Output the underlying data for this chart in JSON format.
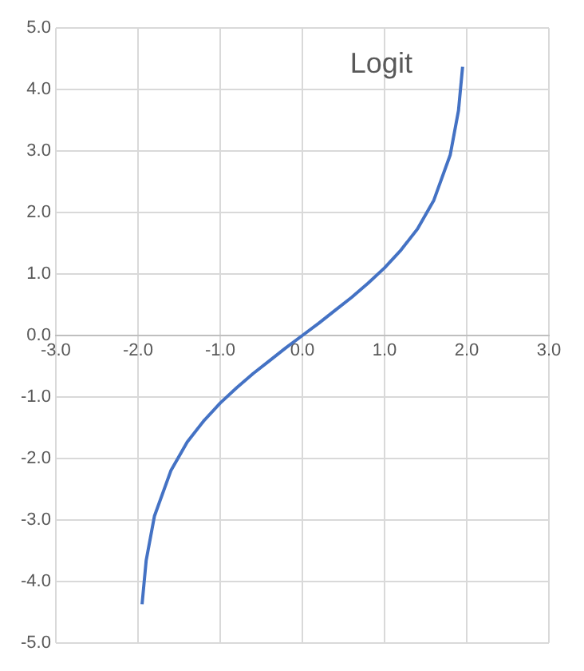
{
  "chart_data": {
    "type": "line",
    "title": "Logit",
    "x": [
      -1.95,
      -1.9,
      -1.8,
      -1.6,
      -1.4,
      -1.2,
      -1.0,
      -0.8,
      -0.6,
      -0.4,
      -0.2,
      0,
      0.2,
      0.4,
      0.6,
      0.8,
      1.0,
      1.2,
      1.4,
      1.6,
      1.8,
      1.9,
      1.95
    ],
    "series": [
      {
        "color": "#4472c4",
        "values": [
          -4.37,
          -3.66,
          -2.94,
          -2.2,
          -1.73,
          -1.39,
          -1.1,
          -0.85,
          -0.62,
          -0.41,
          -0.2,
          0,
          0.2,
          0.41,
          0.62,
          0.85,
          1.1,
          1.39,
          1.73,
          2.2,
          2.94,
          3.66,
          4.37
        ]
      }
    ],
    "xlim": [
      -3,
      3
    ],
    "xticks": [
      {
        "value": -3,
        "label": "-3.0"
      },
      {
        "value": -2,
        "label": "-2.0"
      },
      {
        "value": -1,
        "label": "-1.0"
      },
      {
        "value": 0,
        "label": "0.0"
      },
      {
        "value": 1,
        "label": "1.0"
      },
      {
        "value": 2,
        "label": "2.0"
      },
      {
        "value": 3,
        "label": "3.0"
      }
    ],
    "ylim": [
      -5,
      5
    ],
    "yticks": [
      {
        "value": -5,
        "label": "-5.0"
      },
      {
        "value": -4,
        "label": "-4.0"
      },
      {
        "value": -3,
        "label": "-3.0"
      },
      {
        "value": -2,
        "label": "-2.0"
      },
      {
        "value": -1,
        "label": "-1.0"
      },
      {
        "value": 0,
        "label": "0.0"
      },
      {
        "value": 1,
        "label": "1.0"
      },
      {
        "value": 2,
        "label": "2.0"
      },
      {
        "value": 3,
        "label": "3.0"
      },
      {
        "value": 4,
        "label": "4.0"
      },
      {
        "value": 5,
        "label": "5.0"
      }
    ],
    "grid": true,
    "marker": "none",
    "line_style": "solid",
    "legend": false
  }
}
